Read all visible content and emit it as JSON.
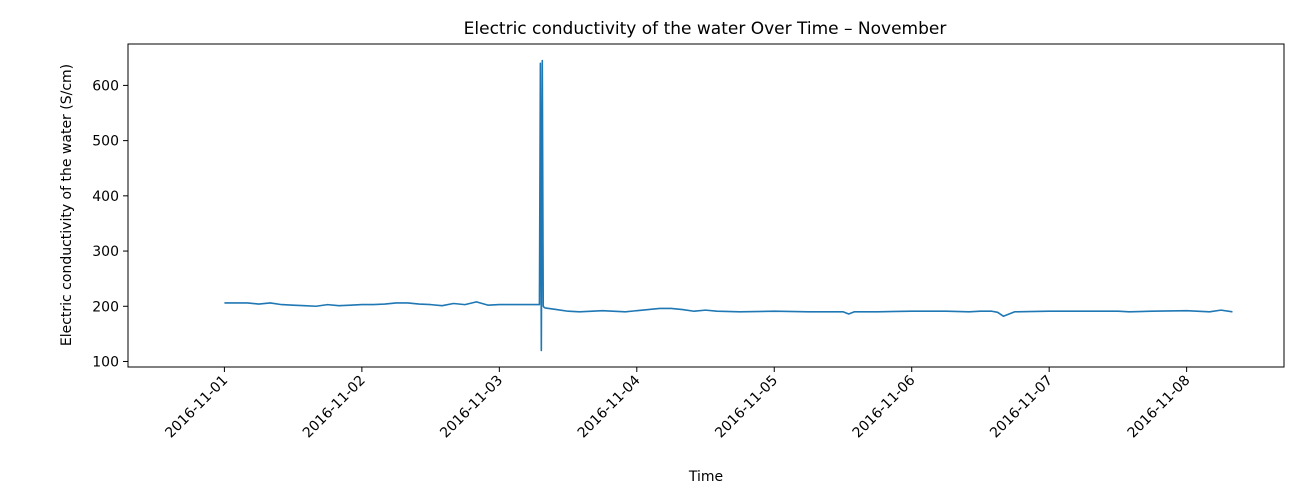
{
  "chart_data": {
    "type": "line",
    "title": "Electric conductivity of the water Over Time – November",
    "xlabel": "Time",
    "ylabel": "Electric conductivity of the water (S/cm)",
    "x_ticks": [
      "2016-11-01",
      "2016-11-02",
      "2016-11-03",
      "2016-11-04",
      "2016-11-05",
      "2016-11-06",
      "2016-11-07",
      "2016-11-08"
    ],
    "y_ticks": [
      100,
      200,
      300,
      400,
      500,
      600
    ],
    "xlim": [
      "2016-10-31T07:10",
      "2016-11-08T17:00"
    ],
    "ylim": [
      90,
      675
    ],
    "grid": false,
    "line_color": "#1f77b4",
    "series": [
      {
        "x": [
          "2016-11-01T00:00",
          "2016-11-01T02:00",
          "2016-11-01T04:00",
          "2016-11-01T06:00",
          "2016-11-01T08:00",
          "2016-11-01T10:00",
          "2016-11-01T12:00",
          "2016-11-01T14:00",
          "2016-11-01T16:00",
          "2016-11-01T18:00",
          "2016-11-01T20:00",
          "2016-11-01T22:00",
          "2016-11-02T00:00",
          "2016-11-02T02:00",
          "2016-11-02T04:00",
          "2016-11-02T06:00",
          "2016-11-02T08:00",
          "2016-11-02T10:00",
          "2016-11-02T12:00",
          "2016-11-02T14:00",
          "2016-11-02T16:00",
          "2016-11-02T18:00",
          "2016-11-02T20:00",
          "2016-11-02T22:00",
          "2016-11-03T00:00",
          "2016-11-03T04:00",
          "2016-11-03T06:00",
          "2016-11-03T06:40",
          "2016-11-03T07:00",
          "2016-11-03T07:10",
          "2016-11-03T07:20",
          "2016-11-03T07:30",
          "2016-11-03T07:40",
          "2016-11-03T07:50",
          "2016-11-03T08:00",
          "2016-11-03T10:00",
          "2016-11-03T12:00",
          "2016-11-03T14:00",
          "2016-11-03T18:00",
          "2016-11-03T22:00",
          "2016-11-04T00:00",
          "2016-11-04T04:00",
          "2016-11-04T06:00",
          "2016-11-04T08:00",
          "2016-11-04T10:00",
          "2016-11-04T12:00",
          "2016-11-04T14:00",
          "2016-11-04T18:00",
          "2016-11-05T00:00",
          "2016-11-05T06:00",
          "2016-11-05T12:00",
          "2016-11-05T13:00",
          "2016-11-05T14:00",
          "2016-11-05T18:00",
          "2016-11-06T00:00",
          "2016-11-06T06:00",
          "2016-11-06T10:00",
          "2016-11-06T12:00",
          "2016-11-06T14:00",
          "2016-11-06T15:00",
          "2016-11-06T16:00",
          "2016-11-06T18:00",
          "2016-11-07T00:00",
          "2016-11-07T06:00",
          "2016-11-07T12:00",
          "2016-11-07T14:00",
          "2016-11-07T18:00",
          "2016-11-08T00:00",
          "2016-11-08T04:00",
          "2016-11-08T06:00",
          "2016-11-08T08:00"
        ],
        "values": [
          206,
          206,
          206,
          204,
          206,
          203,
          202,
          201,
          200,
          203,
          201,
          202,
          203,
          203,
          204,
          206,
          206,
          204,
          203,
          201,
          205,
          203,
          208,
          202,
          203,
          203,
          203,
          203,
          203,
          640,
          120,
          645,
          200,
          198,
          197,
          194,
          191,
          190,
          192,
          190,
          192,
          196,
          196,
          194,
          191,
          193,
          191,
          190,
          191,
          190,
          190,
          186,
          190,
          190,
          191,
          191,
          190,
          191,
          191,
          189,
          182,
          190,
          191,
          191,
          191,
          190,
          191,
          192,
          190,
          193,
          190
        ]
      }
    ]
  }
}
